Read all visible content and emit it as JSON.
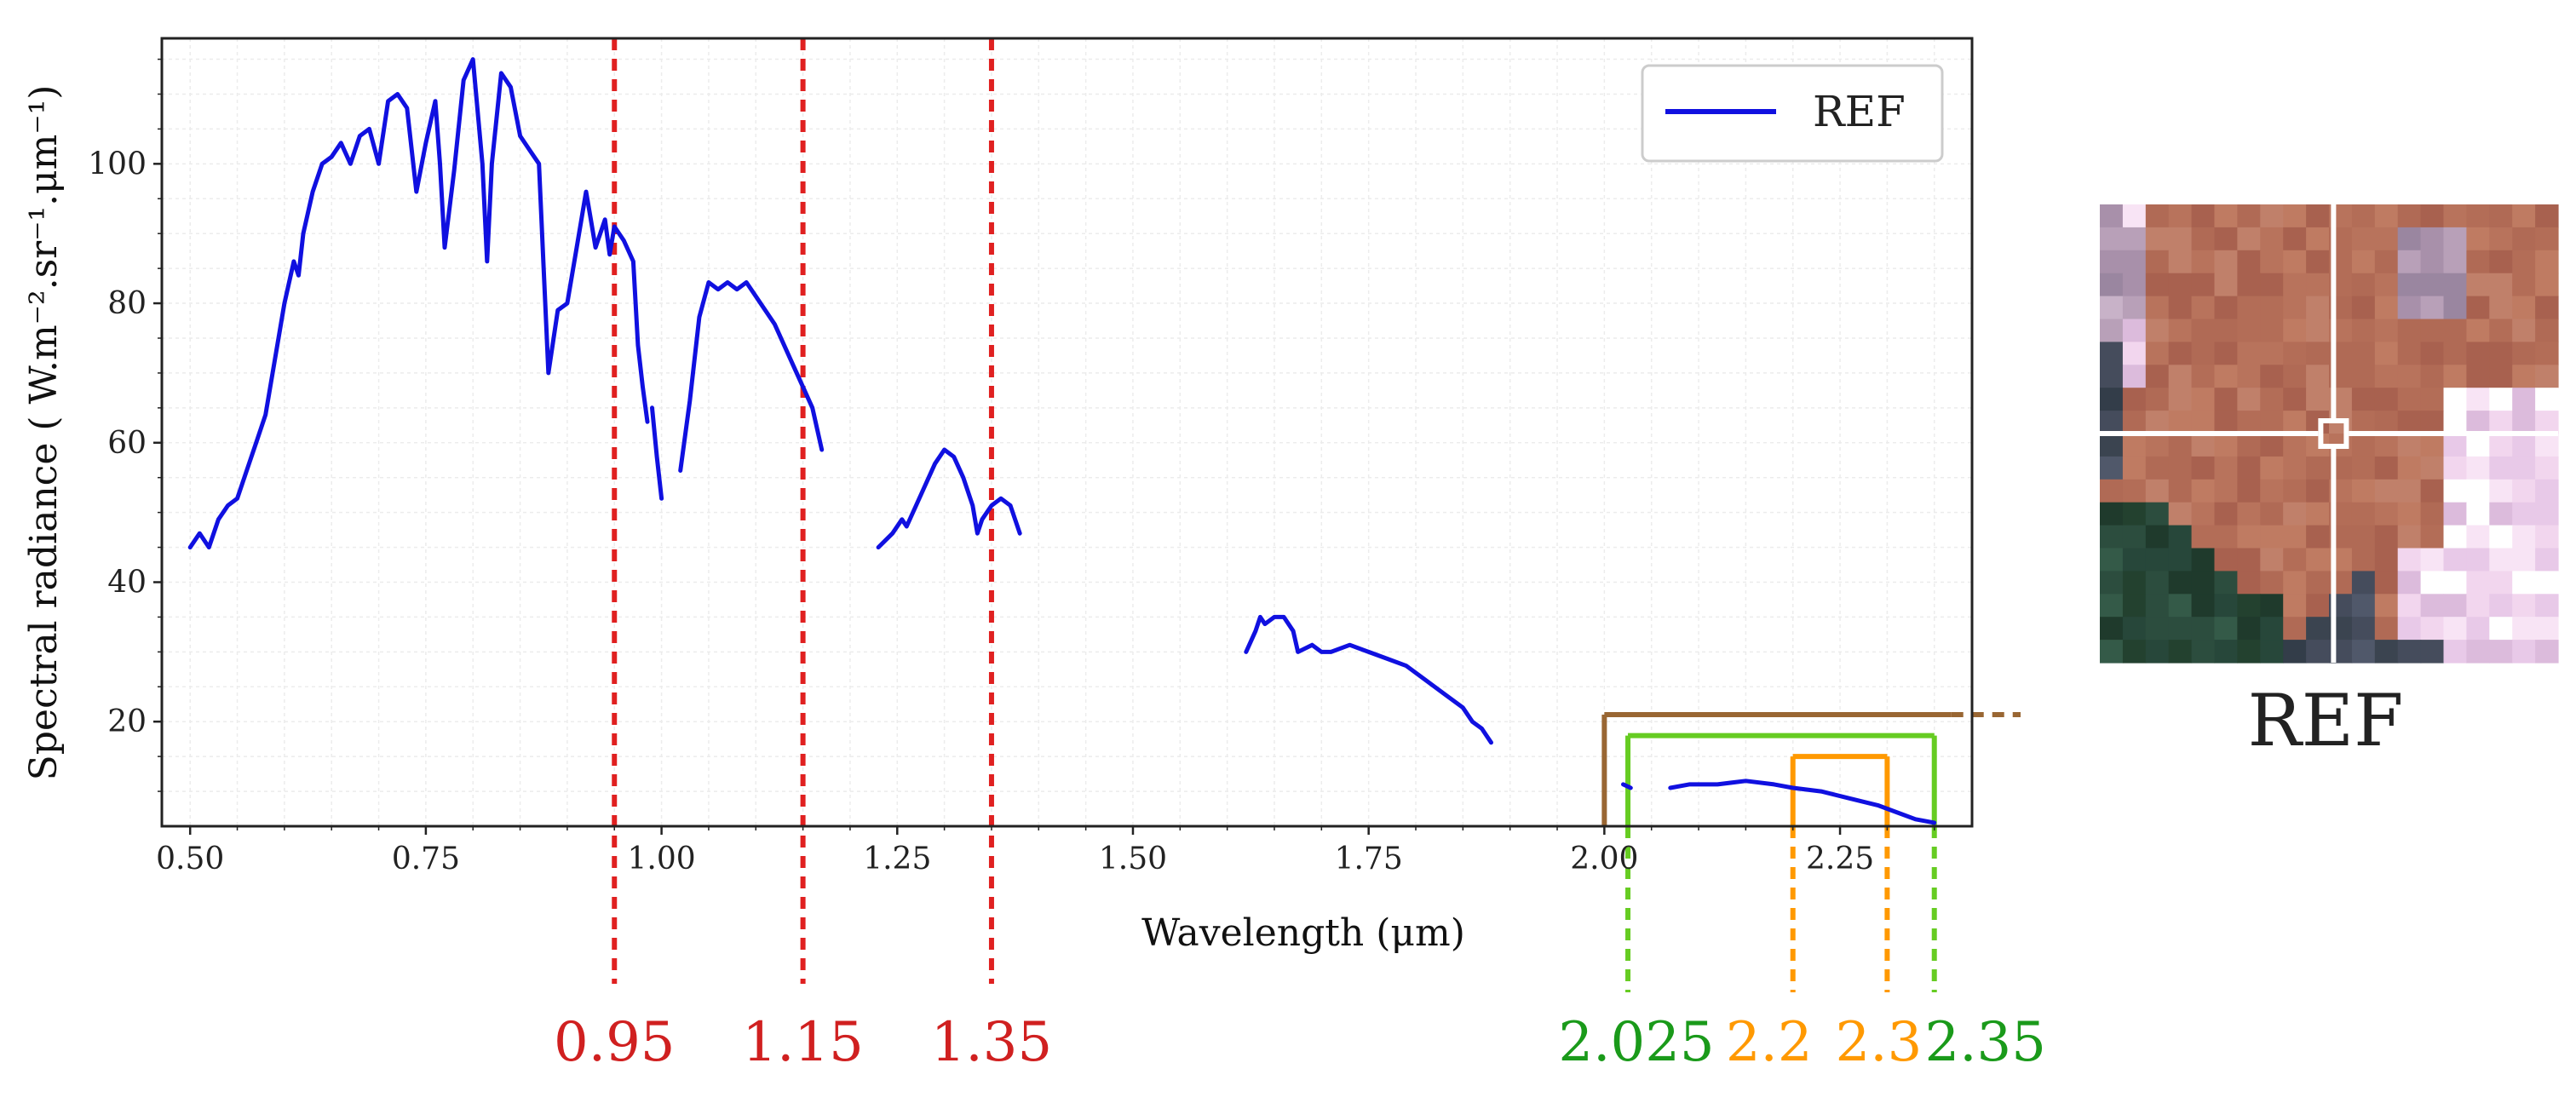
{
  "chart_data": {
    "type": "line",
    "xlabel": "Wavelength (μm)",
    "ylabel": "Spectral radiance ( W.m⁻².sr⁻¹.μm⁻¹)",
    "xlim": [
      0.47,
      2.39
    ],
    "ylim": [
      5,
      118
    ],
    "xticks": [
      "0.50",
      "0.75",
      "1.00",
      "1.25",
      "1.50",
      "1.75",
      "2.00",
      "2.25"
    ],
    "yticks": [
      "20",
      "40",
      "60",
      "80",
      "100"
    ],
    "grid": true,
    "legend": {
      "position": "top-right",
      "entries": [
        "REF"
      ]
    },
    "series": [
      {
        "name": "REF",
        "color": "#1010e0",
        "segments": [
          [
            [
              0.5,
              45
            ],
            [
              0.51,
              47
            ],
            [
              0.515,
              46
            ],
            [
              0.52,
              45
            ],
            [
              0.53,
              49
            ],
            [
              0.54,
              51
            ],
            [
              0.55,
              52
            ],
            [
              0.56,
              56
            ],
            [
              0.57,
              60
            ],
            [
              0.58,
              64
            ],
            [
              0.59,
              72
            ],
            [
              0.6,
              80
            ],
            [
              0.61,
              86
            ],
            [
              0.615,
              84
            ],
            [
              0.62,
              90
            ],
            [
              0.63,
              96
            ],
            [
              0.64,
              100
            ],
            [
              0.65,
              101
            ],
            [
              0.66,
              103
            ],
            [
              0.67,
              100
            ],
            [
              0.68,
              104
            ],
            [
              0.69,
              105
            ],
            [
              0.7,
              100
            ],
            [
              0.71,
              109
            ],
            [
              0.72,
              110
            ],
            [
              0.73,
              108
            ],
            [
              0.74,
              96
            ],
            [
              0.75,
              103
            ],
            [
              0.76,
              109
            ],
            [
              0.765,
              100
            ],
            [
              0.77,
              88
            ],
            [
              0.78,
              99
            ],
            [
              0.79,
              112
            ],
            [
              0.8,
              115
            ],
            [
              0.81,
              100
            ],
            [
              0.815,
              86
            ],
            [
              0.82,
              100
            ],
            [
              0.83,
              113
            ],
            [
              0.84,
              111
            ],
            [
              0.85,
              104
            ],
            [
              0.86,
              102
            ],
            [
              0.87,
              100
            ],
            [
              0.875,
              85
            ],
            [
              0.88,
              70
            ],
            [
              0.89,
              79
            ],
            [
              0.9,
              80
            ],
            [
              0.91,
              88
            ],
            [
              0.92,
              96
            ],
            [
              0.925,
              92
            ],
            [
              0.93,
              88
            ],
            [
              0.94,
              92
            ],
            [
              0.945,
              87
            ],
            [
              0.95,
              91
            ],
            [
              0.96,
              89
            ],
            [
              0.97,
              86
            ],
            [
              0.975,
              74
            ],
            [
              0.98,
              68
            ],
            [
              0.985,
              63
            ]
          ],
          [
            [
              0.99,
              65
            ],
            [
              0.995,
              58
            ],
            [
              1.0,
              52
            ]
          ],
          [
            [
              1.02,
              56
            ],
            [
              1.03,
              66
            ],
            [
              1.04,
              78
            ],
            [
              1.05,
              83
            ],
            [
              1.06,
              82
            ],
            [
              1.07,
              83
            ],
            [
              1.08,
              82
            ],
            [
              1.09,
              83
            ],
            [
              1.1,
              81
            ],
            [
              1.12,
              77
            ],
            [
              1.14,
              71
            ],
            [
              1.16,
              65
            ],
            [
              1.17,
              59
            ]
          ],
          [
            [
              1.23,
              45
            ],
            [
              1.245,
              47
            ],
            [
              1.255,
              49
            ],
            [
              1.26,
              48
            ],
            [
              1.27,
              51
            ],
            [
              1.28,
              54
            ],
            [
              1.29,
              57
            ],
            [
              1.3,
              59
            ],
            [
              1.31,
              58
            ],
            [
              1.32,
              55
            ],
            [
              1.33,
              51
            ],
            [
              1.335,
              47
            ],
            [
              1.34,
              49
            ],
            [
              1.35,
              51
            ],
            [
              1.36,
              52
            ],
            [
              1.37,
              51
            ],
            [
              1.38,
              47
            ]
          ],
          [
            [
              1.62,
              30
            ],
            [
              1.63,
              33
            ],
            [
              1.635,
              35
            ],
            [
              1.64,
              34
            ],
            [
              1.65,
              35
            ],
            [
              1.66,
              35
            ],
            [
              1.67,
              33
            ],
            [
              1.675,
              30
            ],
            [
              1.69,
              31
            ],
            [
              1.7,
              30
            ],
            [
              1.71,
              30
            ],
            [
              1.73,
              31
            ],
            [
              1.75,
              30
            ],
            [
              1.77,
              29
            ],
            [
              1.79,
              28
            ],
            [
              1.81,
              26
            ],
            [
              1.83,
              24
            ],
            [
              1.85,
              22
            ],
            [
              1.86,
              20
            ],
            [
              1.87,
              19
            ],
            [
              1.875,
              18
            ],
            [
              1.88,
              17
            ]
          ],
          [
            [
              2.02,
              11
            ],
            [
              2.028,
              10.5
            ]
          ],
          [
            [
              2.07,
              10.5
            ],
            [
              2.09,
              11
            ],
            [
              2.12,
              11
            ],
            [
              2.15,
              11.5
            ],
            [
              2.18,
              11
            ],
            [
              2.2,
              10.5
            ],
            [
              2.23,
              10
            ],
            [
              2.26,
              9
            ],
            [
              2.29,
              8
            ],
            [
              2.31,
              7
            ],
            [
              2.33,
              6
            ],
            [
              2.35,
              5.5
            ]
          ]
        ]
      }
    ],
    "cutoffs": {
      "values": [
        0.95,
        1.15,
        1.35
      ],
      "labels": [
        "0.95",
        "1.15",
        "1.35"
      ],
      "color": "#e02020"
    },
    "swir_bands": [
      {
        "from": 2.0,
        "to": 2.45,
        "label": "",
        "color": "#996633",
        "level": 21
      },
      {
        "from": 2.025,
        "to": 2.35,
        "label_from": "2.025",
        "label_to": "2.35",
        "color": "#66cc22",
        "label_color": "#1a9a1a",
        "level": 18
      },
      {
        "from": 2.2,
        "to": 2.3,
        "label_from": "2.2",
        "label_to": "2.3",
        "color": "#ff9900",
        "label_color": "#ff9900",
        "level": 15
      }
    ]
  },
  "thumbnail": {
    "caption": "REF"
  }
}
